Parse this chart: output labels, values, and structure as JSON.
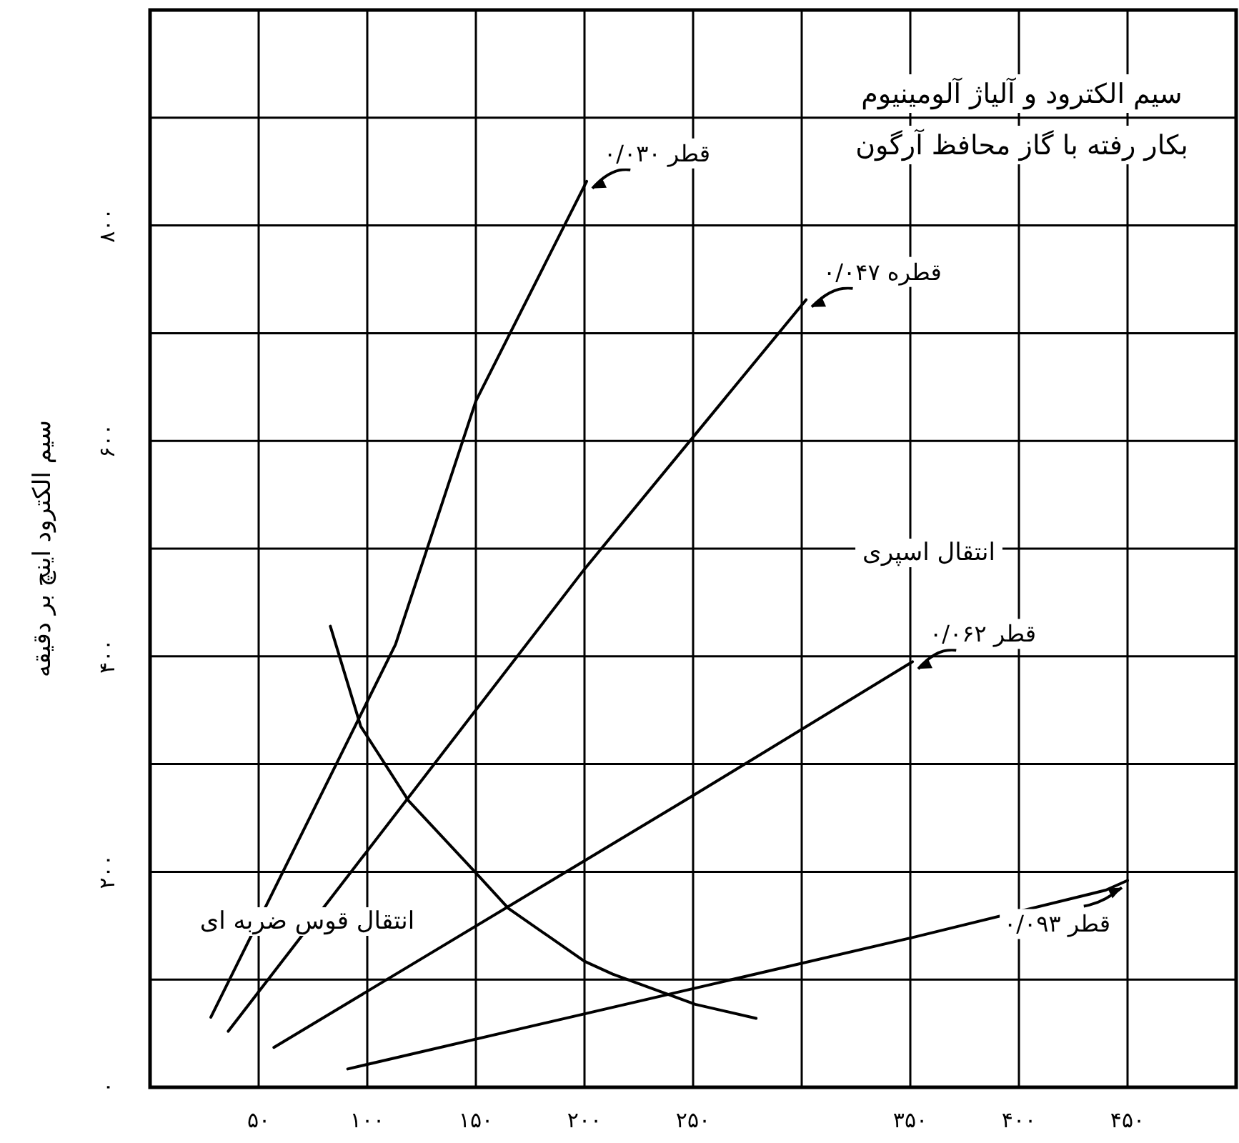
{
  "chart_data": {
    "type": "line",
    "title": "سیم الکترود و آلیاژ آلومینیوم",
    "subtitle": "بکار رفته با گاز محافظ آرگون",
    "ylabel": "سیم الکترود اینچ بر دقیقه",
    "annotations": [
      "انتقال اسپری",
      "انتقال قوس ضربه ای"
    ],
    "xlim": [
      0,
      500
    ],
    "ylim": [
      0,
      1000
    ],
    "xticks": [
      {
        "value": 0,
        "label": null
      },
      {
        "value": 50,
        "label": "۵۰"
      },
      {
        "value": 100,
        "label": "۱۰۰"
      },
      {
        "value": 150,
        "label": "۱۵۰"
      },
      {
        "value": 200,
        "label": "۲۰۰"
      },
      {
        "value": 250,
        "label": "۲۵۰"
      },
      {
        "value": 300,
        "label": null
      },
      {
        "value": 350,
        "label": "۳۵۰"
      },
      {
        "value": 400,
        "label": "۴۰۰"
      },
      {
        "value": 450,
        "label": "۴۵۰"
      },
      {
        "value": 500,
        "label": null
      }
    ],
    "yticks": [
      {
        "value": 0,
        "label": "۰"
      },
      {
        "value": 100,
        "label": null
      },
      {
        "value": 200,
        "label": "۲۰۰"
      },
      {
        "value": 300,
        "label": null
      },
      {
        "value": 400,
        "label": "۴۰۰"
      },
      {
        "value": 500,
        "label": null
      },
      {
        "value": 600,
        "label": "۶۰۰"
      },
      {
        "value": 700,
        "label": null
      },
      {
        "value": 800,
        "label": "۸۰۰"
      },
      {
        "value": 900,
        "label": null
      },
      {
        "value": 1000,
        "label": null
      }
    ],
    "grid": true,
    "marker": "none",
    "line_style": "solid",
    "series": [
      {
        "name": "قطر ۰/۰۳۰",
        "color": "#000000",
        "x": [
          28,
          113,
          150,
          201
        ],
        "values": [
          65,
          411,
          637,
          841
        ]
      },
      {
        "name": "قطره ۰/۰۴۷",
        "color": "#000000",
        "x": [
          36,
          200,
          302
        ],
        "values": [
          52,
          481,
          731
        ]
      },
      {
        "name": "قطر ۰/۰۶۲",
        "color": "#000000",
        "x": [
          57,
          251,
          351
        ],
        "values": [
          37,
          272,
          395
        ]
      },
      {
        "name": "قطر ۰/۰۹۳",
        "color": "#000000",
        "x": [
          91,
          351,
          440,
          450
        ],
        "values": [
          17,
          139,
          183,
          192
        ]
      },
      {
        "color": "#000000",
        "x": [
          83,
          97,
          119,
          150,
          165,
          200,
          213,
          251,
          279
        ],
        "values": [
          428,
          335,
          266,
          199,
          166,
          117,
          105,
          77,
          64
        ]
      }
    ]
  }
}
